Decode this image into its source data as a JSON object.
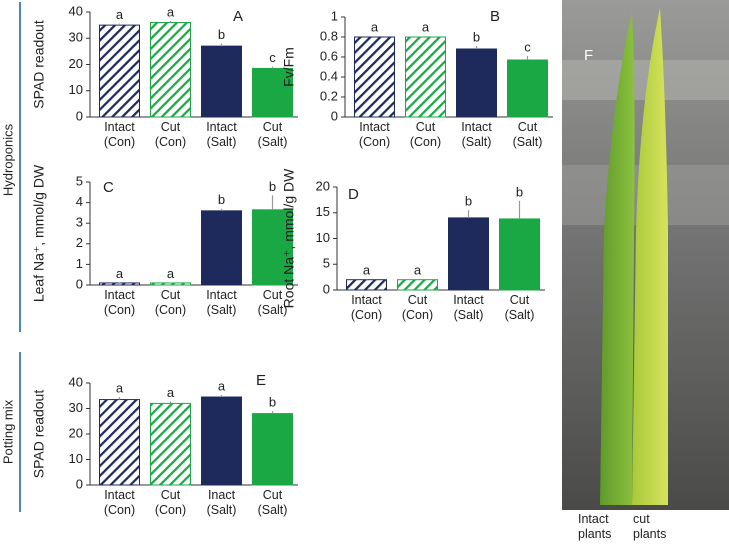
{
  "chart_data": [
    {
      "type": "bar",
      "panel": "A",
      "ylabel": "SPAD readout",
      "categories": [
        "Intact (Con)",
        "Cut (Con)",
        "Intact (Salt)",
        "Cut (Salt)"
      ],
      "values": [
        35,
        36,
        27,
        18.5
      ],
      "errors": [
        0.6,
        0.6,
        1,
        0.7
      ],
      "letters": [
        "a",
        "a",
        "b",
        "c"
      ],
      "colors": [
        "#1f2a5c",
        "#1aa845",
        "#1f2a5c",
        "#1aa845"
      ],
      "hatched": [
        true,
        true,
        false,
        false
      ],
      "ylim": [
        0,
        40
      ],
      "yticks": [
        0,
        10,
        20,
        30,
        40
      ]
    },
    {
      "type": "bar",
      "panel": "B",
      "ylabel": "Fv/Fm",
      "categories": [
        "Intact (Con)",
        "Cut (Con)",
        "Intact (Salt)",
        "Cut (Salt)"
      ],
      "values": [
        0.8,
        0.8,
        0.68,
        0.57
      ],
      "errors": [
        0.01,
        0.01,
        0.03,
        0.04
      ],
      "letters": [
        "a",
        "a",
        "b",
        "c"
      ],
      "colors": [
        "#1f2a5c",
        "#1aa845",
        "#1f2a5c",
        "#1aa845"
      ],
      "hatched": [
        true,
        true,
        false,
        false
      ],
      "ylim": [
        0,
        1
      ],
      "yticks": [
        0,
        0.2,
        0.4,
        0.6,
        0.8,
        1
      ]
    },
    {
      "type": "bar",
      "panel": "C",
      "ylabel": "Leaf Na⁺, mmol/g DW",
      "categories": [
        "Intact (Con)",
        "Cut (Con)",
        "Intact (Salt)",
        "Cut (Salt)"
      ],
      "values": [
        0.1,
        0.1,
        3.6,
        3.65
      ],
      "errors": [
        0.02,
        0.02,
        0.1,
        0.7
      ],
      "letters": [
        "a",
        "a",
        "b",
        "b"
      ],
      "colors": [
        "#1f2a5c",
        "#1aa845",
        "#1f2a5c",
        "#1aa845"
      ],
      "hatched": [
        true,
        true,
        false,
        false
      ],
      "ylim": [
        0,
        5
      ],
      "yticks": [
        0,
        1,
        2,
        3,
        4,
        5
      ]
    },
    {
      "type": "bar",
      "panel": "D",
      "ylabel": "Root Na⁺, mmol/g DW",
      "categories": [
        "Intact (Con)",
        "Cut (Con)",
        "Intact (Salt)",
        "Cut (Salt)"
      ],
      "values": [
        2,
        2,
        14,
        13.8
      ],
      "errors": [
        0.1,
        0.1,
        1.5,
        3.5
      ],
      "letters": [
        "a",
        "a",
        "b",
        "b"
      ],
      "colors": [
        "#1f2a5c",
        "#1aa845",
        "#1f2a5c",
        "#1aa845"
      ],
      "hatched": [
        true,
        true,
        false,
        false
      ],
      "ylim": [
        0,
        20
      ],
      "yticks": [
        0,
        5,
        10,
        15,
        20
      ]
    },
    {
      "type": "bar",
      "panel": "E",
      "ylabel": "SPAD readout",
      "categories": [
        "Intact (Con)",
        "Cut (Con)",
        "Inact (Salt)",
        "Cut (Salt)"
      ],
      "values": [
        33.5,
        32,
        34.5,
        28
      ],
      "errors": [
        1,
        0.8,
        0.8,
        1
      ],
      "letters": [
        "a",
        "a",
        "a",
        "b"
      ],
      "colors": [
        "#1f2a5c",
        "#1aa845",
        "#1f2a5c",
        "#1aa845"
      ],
      "hatched": [
        true,
        true,
        false,
        false
      ],
      "ylim": [
        0,
        40
      ],
      "yticks": [
        0,
        10,
        20,
        30,
        40
      ]
    }
  ],
  "row_labels": [
    "Hydroponics",
    "Potting mix"
  ],
  "photo": {
    "panel": "F",
    "captions": [
      "Intact plants",
      "cut plants"
    ]
  }
}
